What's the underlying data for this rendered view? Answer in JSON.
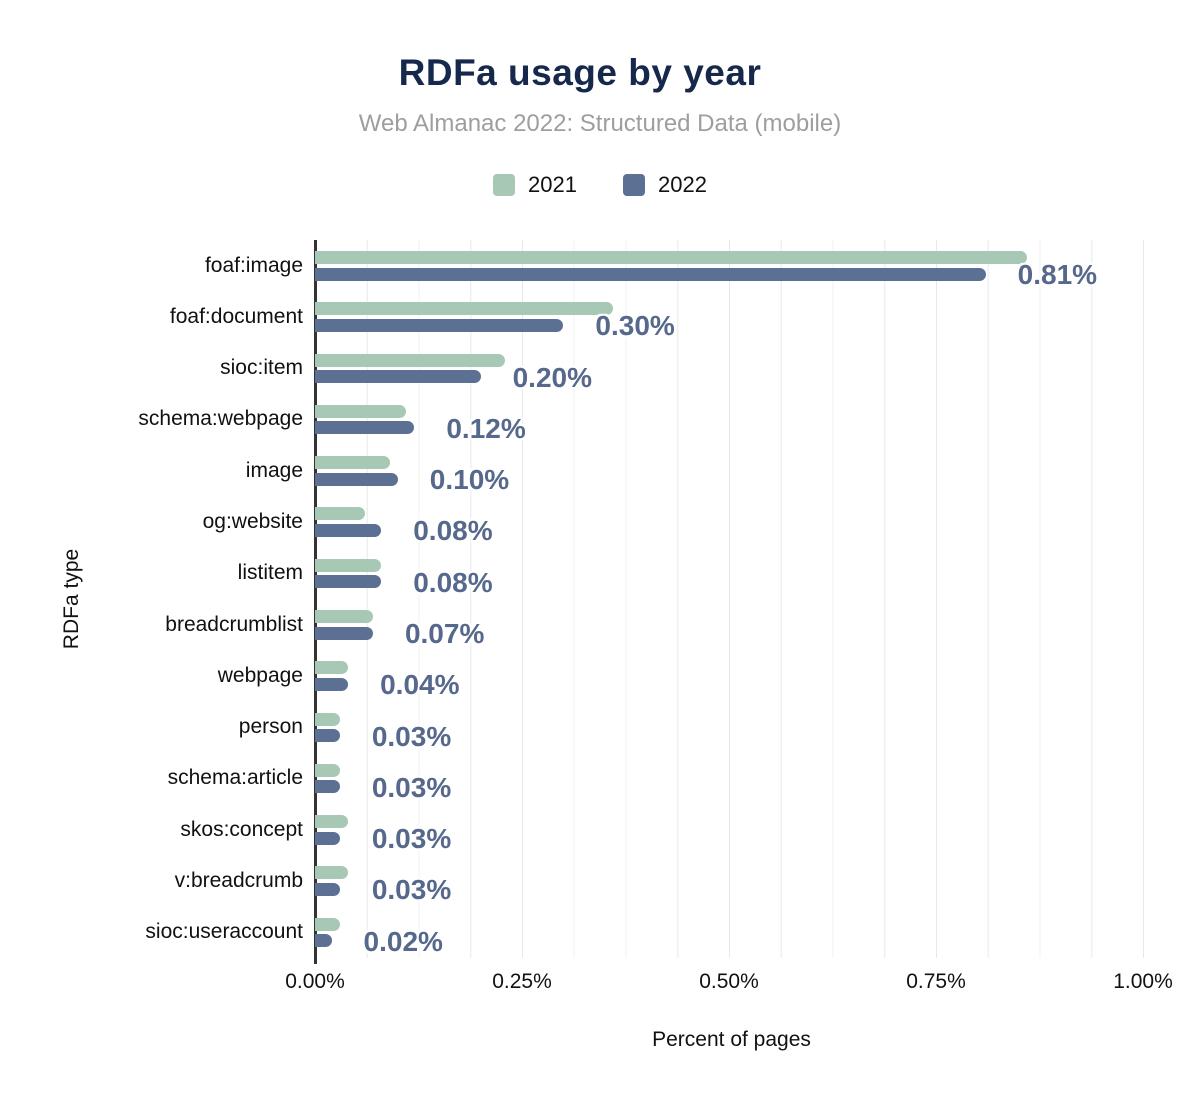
{
  "chart_data": {
    "type": "bar",
    "orientation": "horizontal",
    "title": "RDFa usage by year",
    "subtitle": "Web Almanac 2022: Structured Data (mobile)",
    "xlabel": "Percent of pages",
    "ylabel": "RDFa type",
    "legend_position": "top",
    "grid": "vertical, minor every 0.0625%, major every 0.25%",
    "xlim": [
      0,
      1.0
    ],
    "x_ticks": [
      {
        "value": 0.0,
        "label": "0.00%"
      },
      {
        "value": 0.25,
        "label": "0.25%"
      },
      {
        "value": 0.5,
        "label": "0.50%"
      },
      {
        "value": 0.75,
        "label": "0.75%"
      },
      {
        "value": 1.0,
        "label": "1.00%"
      }
    ],
    "categories": [
      "foaf:image",
      "foaf:document",
      "sioc:item",
      "schema:webpage",
      "image",
      "og:website",
      "listitem",
      "breadcrumblist",
      "webpage",
      "person",
      "schema:article",
      "skos:concept",
      "v:breadcrumb",
      "sioc:useraccount"
    ],
    "series": [
      {
        "name": "2021",
        "color": "#a6c8b4",
        "values": [
          0.86,
          0.36,
          0.23,
          0.11,
          0.09,
          0.06,
          0.08,
          0.07,
          0.04,
          0.03,
          0.03,
          0.04,
          0.04,
          0.03
        ]
      },
      {
        "name": "2022",
        "color": "#5b7093",
        "values": [
          0.81,
          0.3,
          0.2,
          0.12,
          0.1,
          0.08,
          0.08,
          0.07,
          0.04,
          0.03,
          0.03,
          0.03,
          0.03,
          0.02
        ]
      }
    ],
    "value_labels": [
      "0.81%",
      "0.30%",
      "0.20%",
      "0.12%",
      "0.10%",
      "0.08%",
      "0.08%",
      "0.07%",
      "0.04%",
      "0.03%",
      "0.03%",
      "0.03%",
      "0.03%",
      "0.02%"
    ],
    "value_labels_series": "2022"
  },
  "colors": {
    "series_2021": "#a6c8b4",
    "series_2022": "#5b7093",
    "value_label": "#56688c",
    "title": "#16294d",
    "subtitle": "#9e9e9e",
    "axis_line": "#333333",
    "gridline_minor": "#f0f0f0",
    "gridline_major": "#e8e8e8"
  }
}
